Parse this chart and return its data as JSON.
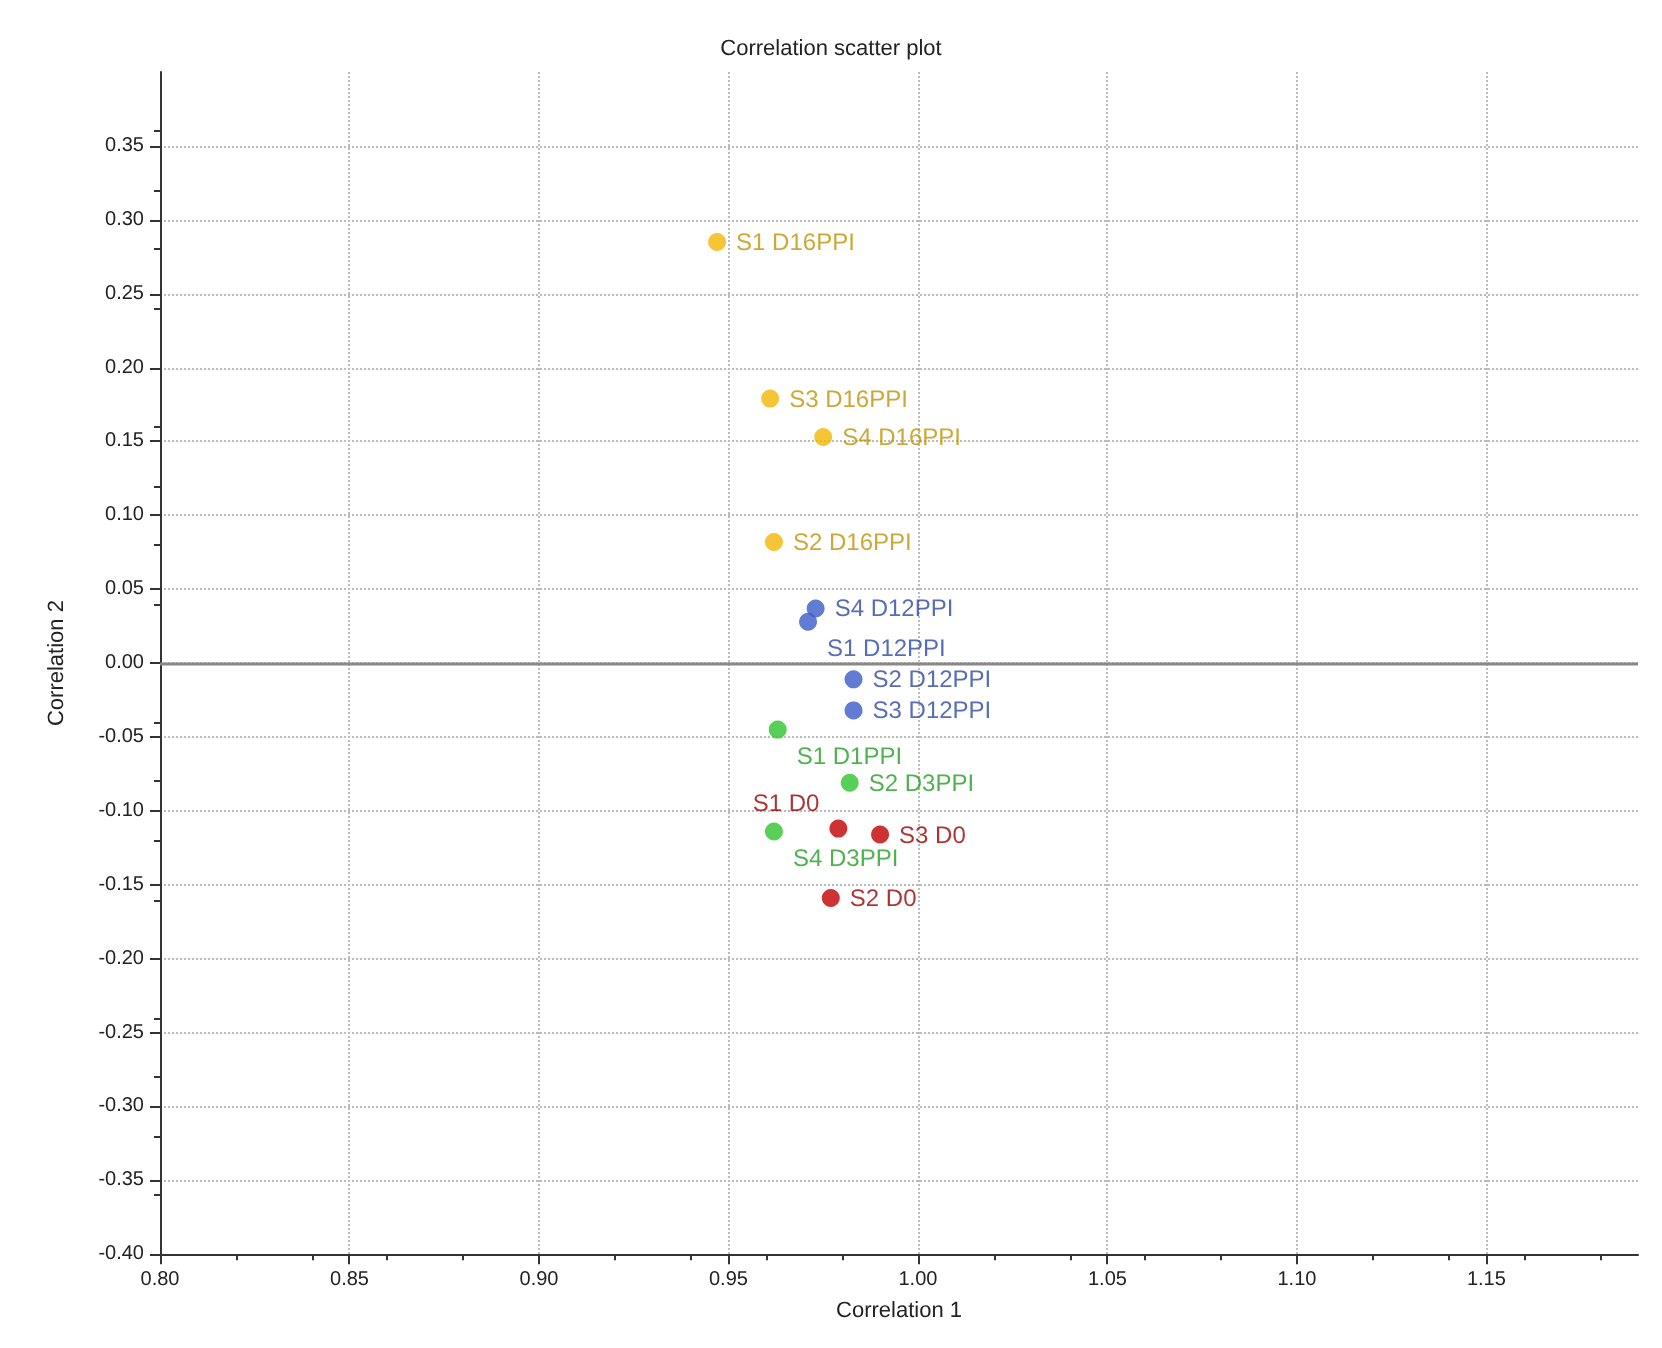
{
  "chart_data": {
    "type": "scatter",
    "title": "Correlation scatter plot",
    "xlabel": "Correlation 1",
    "ylabel": "Correlation 2",
    "xlim": [
      0.8,
      1.19
    ],
    "xticks": [
      {
        "value": 0.8,
        "label": "0.80"
      },
      0.85,
      {
        "value": 0.9,
        "label": "0.90"
      },
      0.95,
      {
        "value": 1.0,
        "label": "1.00"
      },
      1.05,
      {
        "value": 1.1,
        "label": "1.10"
      },
      1.15
    ],
    "ylim": [
      -0.4,
      0.4
    ],
    "yticks": [
      {
        "value": -0.4,
        "label": "-0.40"
      },
      -0.35,
      {
        "value": -0.3,
        "label": "-0.30"
      },
      -0.25,
      {
        "value": -0.2,
        "label": "-0.20"
      },
      -0.15,
      {
        "value": -0.1,
        "label": "-0.10"
      },
      -0.05,
      {
        "value": 0,
        "label": "0.00"
      },
      0.05,
      {
        "value": 0.1,
        "label": "0.10"
      },
      0.15,
      {
        "value": 0.2,
        "label": "0.20"
      },
      0.25,
      {
        "value": 0.3,
        "label": "0.30"
      },
      0.35
    ],
    "grid": true,
    "marker": "circle",
    "ref_lines": [
      {
        "axis": "y",
        "value": 0,
        "color": "#888888",
        "line_style": "solid"
      }
    ],
    "series": [
      {
        "color": "#f2b705",
        "x": [
          0.947,
          0.961,
          0.975,
          0.962
        ],
        "values": [
          0.285,
          0.179,
          0.153,
          0.082
        ],
        "value_labels": [
          "S1 D16PPI",
          "S3 D16PPI",
          "S4 D16PPI",
          "S2 D16PPI"
        ]
      },
      {
        "color": "#3b5bc9",
        "x": [
          0.973,
          0.971,
          0.983,
          0.983
        ],
        "values": [
          0.037,
          0.028,
          -0.011,
          -0.032
        ],
        "value_labels": [
          "S4 D12PPI",
          "S1 D12PPI",
          "S2 D12PPI",
          "S3 D12PPI"
        ]
      },
      {
        "color": "#2ec42e",
        "x": [
          0.963,
          0.982,
          0.962
        ],
        "values": [
          -0.045,
          -0.081,
          -0.114
        ],
        "value_labels": [
          "S1 D1PPI",
          "S2 D3PPI",
          "S4 D3PPI"
        ]
      },
      {
        "color": "#c00000",
        "x": [
          0.979,
          0.99,
          0.977
        ],
        "values": [
          -0.112,
          -0.116,
          -0.159
        ],
        "value_labels": [
          "S1 D0",
          "S3 D0",
          "S2 D0"
        ]
      }
    ]
  }
}
